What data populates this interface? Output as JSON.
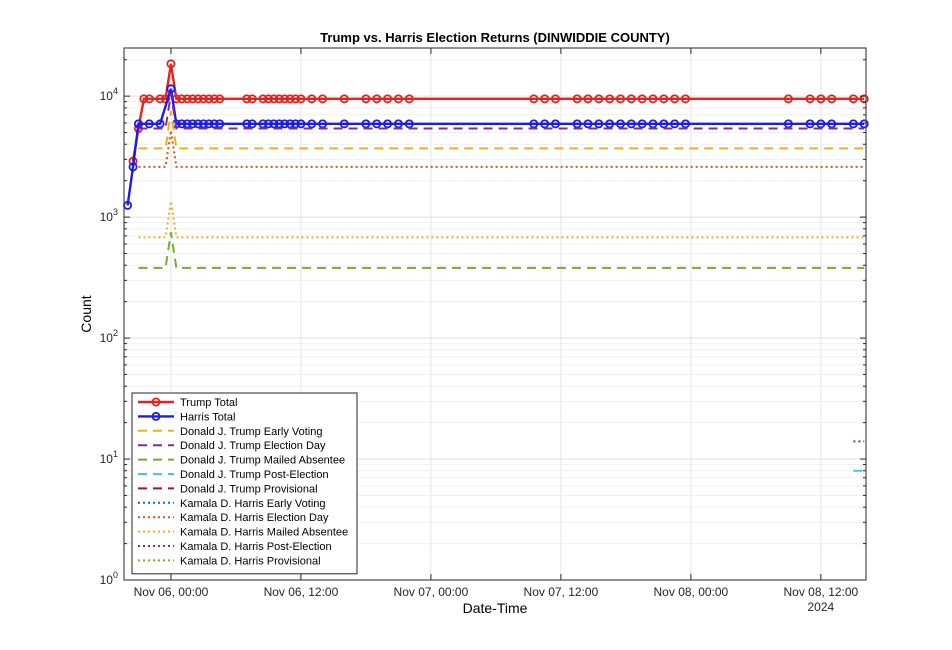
{
  "chart_data": {
    "type": "line",
    "title": "Trump vs. Harris Election Returns (DINWIDDIE COUNTY)",
    "xlabel": "Date-Time",
    "ylabel": "Count",
    "y_scale": "log",
    "ylim": [
      1,
      25000
    ],
    "xlim": [
      "2024-11-05T19:40",
      "2024-11-08T16:10"
    ],
    "x_ticks": [
      "Nov 06, 00:00",
      "Nov 06, 12:00",
      "Nov 07, 00:00",
      "Nov 07, 12:00",
      "Nov 08, 00:00",
      "Nov 08, 12:00"
    ],
    "x_tick_values": [
      "2024-11-06T00:00",
      "2024-11-06T12:00",
      "2024-11-07T00:00",
      "2024-11-07T12:00",
      "2024-11-08T00:00",
      "2024-11-08T12:00"
    ],
    "x_secondary_label": "2024",
    "y_ticks": [
      "10^0",
      "10^1",
      "10^2",
      "10^3",
      "10^4"
    ],
    "y_tick_values": [
      1,
      10,
      100,
      1000,
      10000
    ],
    "grid": true,
    "legend_position": "bottom-left",
    "series": [
      {
        "name": "Trump Total",
        "color": "#e8211c",
        "style": "solid",
        "marker": "circle",
        "points": [
          [
            "2024-11-05T20:30",
            2900
          ],
          [
            "2024-11-05T21:00",
            5400
          ],
          [
            "2024-11-05T21:30",
            9500
          ],
          [
            "2024-11-05T22:00",
            9500
          ],
          [
            "2024-11-05T23:00",
            9500
          ],
          [
            "2024-11-05T23:30",
            9500
          ],
          [
            "2024-11-06T00:00",
            18500
          ],
          [
            "2024-11-06T00:30",
            9500
          ],
          [
            "2024-11-06T01:00",
            9500
          ],
          [
            "2024-11-06T01:30",
            9500
          ],
          [
            "2024-11-06T02:00",
            9500
          ],
          [
            "2024-11-06T02:30",
            9500
          ],
          [
            "2024-11-06T03:00",
            9500
          ],
          [
            "2024-11-06T03:30",
            9500
          ],
          [
            "2024-11-06T04:00",
            9500
          ],
          [
            "2024-11-06T04:30",
            9500
          ],
          [
            "2024-11-06T07:00",
            9500
          ],
          [
            "2024-11-06T07:30",
            9500
          ],
          [
            "2024-11-06T08:30",
            9500
          ],
          [
            "2024-11-06T09:00",
            9500
          ],
          [
            "2024-11-06T09:30",
            9500
          ],
          [
            "2024-11-06T10:00",
            9500
          ],
          [
            "2024-11-06T10:30",
            9500
          ],
          [
            "2024-11-06T11:00",
            9500
          ],
          [
            "2024-11-06T11:30",
            9500
          ],
          [
            "2024-11-06T12:00",
            9500
          ],
          [
            "2024-11-06T13:00",
            9500
          ],
          [
            "2024-11-06T14:00",
            9500
          ],
          [
            "2024-11-06T16:00",
            9500
          ],
          [
            "2024-11-06T18:00",
            9500
          ],
          [
            "2024-11-06T19:00",
            9500
          ],
          [
            "2024-11-06T20:00",
            9500
          ],
          [
            "2024-11-06T21:00",
            9500
          ],
          [
            "2024-11-06T22:00",
            9500
          ],
          [
            "2024-11-07T09:30",
            9500
          ],
          [
            "2024-11-07T10:30",
            9500
          ],
          [
            "2024-11-07T11:30",
            9500
          ],
          [
            "2024-11-07T13:30",
            9500
          ],
          [
            "2024-11-07T14:30",
            9500
          ],
          [
            "2024-11-07T15:30",
            9500
          ],
          [
            "2024-11-07T16:30",
            9500
          ],
          [
            "2024-11-07T17:30",
            9500
          ],
          [
            "2024-11-07T18:30",
            9500
          ],
          [
            "2024-11-07T19:30",
            9500
          ],
          [
            "2024-11-07T20:30",
            9500
          ],
          [
            "2024-11-07T21:30",
            9500
          ],
          [
            "2024-11-07T22:30",
            9500
          ],
          [
            "2024-11-07T23:30",
            9500
          ],
          [
            "2024-11-08T09:00",
            9500
          ],
          [
            "2024-11-08T11:00",
            9500
          ],
          [
            "2024-11-08T12:00",
            9500
          ],
          [
            "2024-11-08T13:00",
            9500
          ],
          [
            "2024-11-08T15:00",
            9500
          ],
          [
            "2024-11-08T16:00",
            9500
          ]
        ]
      },
      {
        "name": "Harris Total",
        "color": "#1c1ce8",
        "style": "solid",
        "marker": "circle",
        "points": [
          [
            "2024-11-05T20:00",
            1250
          ],
          [
            "2024-11-05T20:30",
            2600
          ],
          [
            "2024-11-05T21:00",
            5900
          ],
          [
            "2024-11-05T22:00",
            5900
          ],
          [
            "2024-11-05T23:00",
            5900
          ],
          [
            "2024-11-06T00:00",
            11500
          ],
          [
            "2024-11-06T00:30",
            5900
          ],
          [
            "2024-11-06T01:00",
            5900
          ],
          [
            "2024-11-06T01:30",
            5900
          ],
          [
            "2024-11-06T02:00",
            5900
          ],
          [
            "2024-11-06T02:30",
            5900
          ],
          [
            "2024-11-06T03:00",
            5900
          ],
          [
            "2024-11-06T03:30",
            5900
          ],
          [
            "2024-11-06T04:00",
            5900
          ],
          [
            "2024-11-06T04:30",
            5900
          ],
          [
            "2024-11-06T07:00",
            5900
          ],
          [
            "2024-11-06T07:30",
            5900
          ],
          [
            "2024-11-06T08:30",
            5900
          ],
          [
            "2024-11-06T09:00",
            5900
          ],
          [
            "2024-11-06T09:30",
            5900
          ],
          [
            "2024-11-06T10:00",
            5900
          ],
          [
            "2024-11-06T10:30",
            5900
          ],
          [
            "2024-11-06T11:00",
            5900
          ],
          [
            "2024-11-06T11:30",
            5900
          ],
          [
            "2024-11-06T12:00",
            5900
          ],
          [
            "2024-11-06T13:00",
            5900
          ],
          [
            "2024-11-06T14:00",
            5900
          ],
          [
            "2024-11-06T16:00",
            5900
          ],
          [
            "2024-11-06T18:00",
            5900
          ],
          [
            "2024-11-06T19:00",
            5900
          ],
          [
            "2024-11-06T20:00",
            5900
          ],
          [
            "2024-11-06T21:00",
            5900
          ],
          [
            "2024-11-06T22:00",
            5900
          ],
          [
            "2024-11-07T09:30",
            5900
          ],
          [
            "2024-11-07T10:30",
            5900
          ],
          [
            "2024-11-07T11:30",
            5900
          ],
          [
            "2024-11-07T13:30",
            5900
          ],
          [
            "2024-11-07T14:30",
            5900
          ],
          [
            "2024-11-07T15:30",
            5900
          ],
          [
            "2024-11-07T16:30",
            5900
          ],
          [
            "2024-11-07T17:30",
            5900
          ],
          [
            "2024-11-07T18:30",
            5900
          ],
          [
            "2024-11-07T19:30",
            5900
          ],
          [
            "2024-11-07T20:30",
            5900
          ],
          [
            "2024-11-07T21:30",
            5900
          ],
          [
            "2024-11-07T22:30",
            5900
          ],
          [
            "2024-11-07T23:30",
            5900
          ],
          [
            "2024-11-08T09:00",
            5900
          ],
          [
            "2024-11-08T11:00",
            5900
          ],
          [
            "2024-11-08T12:00",
            5900
          ],
          [
            "2024-11-08T13:00",
            5900
          ],
          [
            "2024-11-08T15:00",
            5900
          ],
          [
            "2024-11-08T16:00",
            5900
          ]
        ]
      },
      {
        "name": "Donald J. Trump Early Voting",
        "color": "#edb120",
        "style": "dashed",
        "points": [
          [
            "2024-11-05T21:00",
            3700
          ],
          [
            "2024-11-05T23:30",
            3700
          ],
          [
            "2024-11-06T00:00",
            7500
          ],
          [
            "2024-11-06T00:30",
            3700
          ],
          [
            "2024-11-08T16:00",
            3700
          ]
        ]
      },
      {
        "name": "Donald J. Trump Election Day",
        "color": "#7e2f8e",
        "style": "dashed",
        "points": [
          [
            "2024-11-05T21:00",
            5400
          ],
          [
            "2024-11-05T23:30",
            5400
          ],
          [
            "2024-11-06T00:00",
            10500
          ],
          [
            "2024-11-06T00:30",
            5400
          ],
          [
            "2024-11-08T16:00",
            5400
          ]
        ]
      },
      {
        "name": "Donald J. Trump Mailed Absentee",
        "color": "#77ac30",
        "style": "dashed",
        "points": [
          [
            "2024-11-05T21:00",
            380
          ],
          [
            "2024-11-05T23:30",
            380
          ],
          [
            "2024-11-06T00:00",
            750
          ],
          [
            "2024-11-06T00:30",
            380
          ],
          [
            "2024-11-08T16:00",
            380
          ]
        ]
      },
      {
        "name": "Donald J. Trump Post-Election",
        "color": "#4dbeee",
        "style": "dashed",
        "points": [
          [
            "2024-11-08T15:00",
            8
          ],
          [
            "2024-11-08T16:00",
            8
          ]
        ]
      },
      {
        "name": "Donald J. Trump Provisional",
        "color": "#a2142f",
        "style": "dashed",
        "points": []
      },
      {
        "name": "Kamala D. Harris Early Voting",
        "color": "#0072bd",
        "style": "dotted",
        "points": []
      },
      {
        "name": "Kamala D. Harris Election Day",
        "color": "#d95319",
        "style": "dotted",
        "points": [
          [
            "2024-11-05T21:00",
            2600
          ],
          [
            "2024-11-05T23:30",
            2600
          ],
          [
            "2024-11-06T00:00",
            5200
          ],
          [
            "2024-11-06T00:30",
            2600
          ],
          [
            "2024-11-08T16:00",
            2600
          ]
        ]
      },
      {
        "name": "Kamala D. Harris Mailed Absentee",
        "color": "#edb120",
        "style": "dotted",
        "points": [
          [
            "2024-11-05T21:00",
            680
          ],
          [
            "2024-11-05T23:30",
            680
          ],
          [
            "2024-11-06T00:00",
            1350
          ],
          [
            "2024-11-06T00:30",
            680
          ],
          [
            "2024-11-08T16:00",
            680
          ]
        ]
      },
      {
        "name": "Kamala D. Harris Post-Election",
        "color": "#7e2f8e",
        "style": "dotted",
        "points": [
          [
            "2024-11-08T15:00",
            14
          ],
          [
            "2024-11-08T16:00",
            14
          ]
        ]
      },
      {
        "name": "Kamala D. Harris Provisional",
        "color": "#77ac30",
        "style": "dotted",
        "points": []
      }
    ]
  }
}
